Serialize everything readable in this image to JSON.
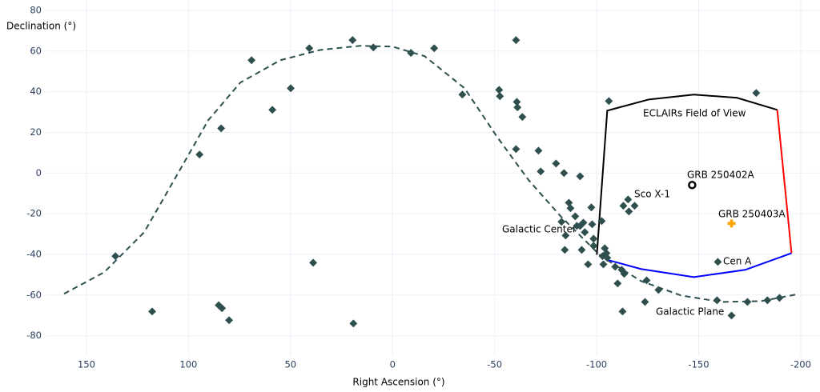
{
  "chart_data": {
    "type": "scatter",
    "x_label": "Right Ascension (°)",
    "y_label": "Declination (°)",
    "xlim": [
      170,
      -206
    ],
    "ylim": [
      -90,
      83
    ],
    "xticks": [
      150,
      100,
      50,
      0,
      -50,
      -100,
      -150,
      -200
    ],
    "yticks": [
      -80,
      -60,
      -40,
      -20,
      0,
      20,
      40,
      60,
      80
    ],
    "grid": true,
    "sources": {
      "color": "#2f4f4f",
      "x": [
        135.8,
        117.8,
        94.6,
        85.2,
        83.6,
        84.0,
        80.1,
        69.1,
        58.9,
        49.9,
        40.8,
        38.9,
        19.6,
        19.2,
        9.4,
        -9.0,
        -20.4,
        -34.2,
        -52.2,
        -52.6,
        -60.5,
        -60.9,
        -61.2,
        -63.6,
        -60.5,
        -71.5,
        -72.6,
        -80.1,
        -84.0,
        -91.9,
        -97.4,
        -82.8,
        -86.4,
        -87.2,
        -89.5,
        -90.3,
        -91.9,
        -93.5,
        -94.2,
        -97.8,
        -84.8,
        -84.4,
        -92.7,
        -95.8,
        -98.5,
        -98.5,
        -102.5,
        -102.9,
        -103.3,
        -104.0,
        -104.8,
        -105.2,
        -106.0,
        -109.1,
        -110.3,
        -112.3,
        -113.5,
        -112.7,
        -115.4,
        -113.1,
        -115.8,
        -118.6,
        -124.5,
        -123.7,
        -130.3,
        -159.4,
        -159.0,
        -166.1,
        -173.9,
        -178.2,
        -183.7,
        -189.6
      ],
      "y": [
        -40.9,
        -68.1,
        9.1,
        -65,
        -66.5,
        22.0,
        -72.4,
        55.5,
        31.1,
        41.7,
        61.4,
        -44.1,
        65.4,
        -74,
        61.8,
        59.1,
        61.4,
        38.6,
        40.9,
        37.8,
        65.4,
        35.0,
        32.3,
        27.6,
        11.8,
        11.0,
        0.8,
        4.7,
        0,
        -1.6,
        -16.9,
        -24,
        -14.6,
        -17.3,
        -21.3,
        -26,
        -26,
        -24.4,
        -29.1,
        -25.2,
        -30.7,
        -37.8,
        -37.8,
        -44.9,
        -32.3,
        -35.8,
        -23.6,
        -40.9,
        -44.9,
        -37,
        -39.4,
        -41.7,
        35.4,
        -46.1,
        -54.3,
        -47.6,
        -49.6,
        -68.1,
        -13,
        -16.1,
        -18.9,
        -16.1,
        -52.8,
        -63.4,
        -57.5,
        -43.7,
        -62.6,
        -70.1,
        -63.4,
        39.4,
        -62.6,
        -61.4
      ]
    },
    "galactic_plane": {
      "color": "#2f4f4f",
      "x": [
        161,
        141.3,
        121.7,
        106,
        90.3,
        74.6,
        55,
        35.3,
        15.7,
        0,
        -15.7,
        -35.3,
        -51,
        -66.7,
        -82.4,
        -102.1,
        -121.7,
        -141.3,
        -161,
        -180.6,
        -197.5
      ],
      "y": [
        -59.4,
        -48.8,
        -29.1,
        -1.6,
        26,
        44.5,
        55.5,
        60.6,
        62.6,
        62.2,
        57.5,
        41.7,
        18.1,
        -3.5,
        -21.3,
        -40.9,
        -53.1,
        -60.2,
        -63.4,
        -63,
        -59.8
      ]
    },
    "field_of_view": [
      {
        "color": "#000000",
        "x": [
          -100.1,
          -105.2,
          -125.6,
          -147.6,
          -168.8,
          -188.5
        ],
        "y": [
          -40.2,
          30.7,
          36.2,
          38.6,
          37,
          31.1
        ]
      },
      {
        "color": "#ff0000",
        "x": [
          -188.5,
          -195.5
        ],
        "y": [
          31.1,
          -39.4
        ]
      },
      {
        "color": "#0000ff",
        "x": [
          -195.5,
          -172.8,
          -147.6,
          -121.7,
          -106
        ],
        "y": [
          -39.4,
          -47.6,
          -51.2,
          -47.2,
          -42.9
        ]
      }
    ],
    "grb_250402a": {
      "x": -146.8,
      "y": -5.9,
      "color": "#000000"
    },
    "grb_250403a": {
      "x": -166.1,
      "y": -24.8,
      "color": "#ffa500"
    },
    "annotations": [
      "ECLAIRs Field of View",
      "GRB 250402A",
      "Sco X-1",
      "GRB 250403A",
      "Galactic Center",
      "Cen A",
      "Galactic Plane"
    ]
  }
}
